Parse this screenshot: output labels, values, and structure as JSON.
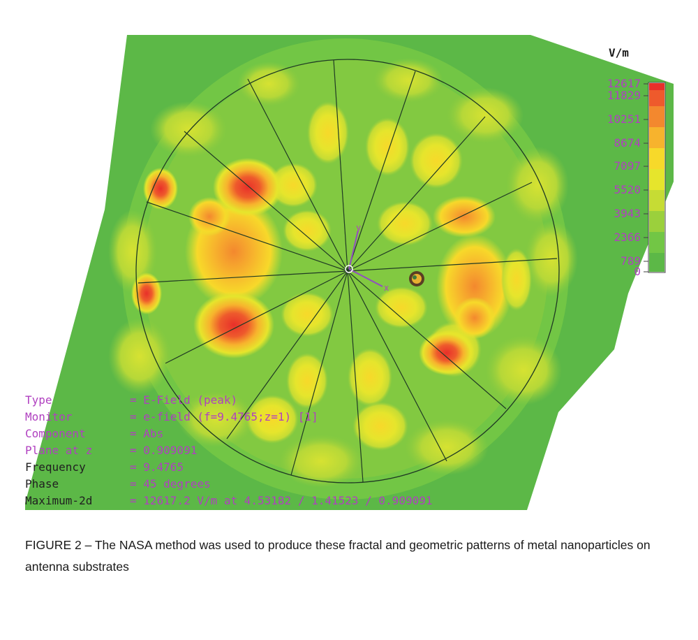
{
  "legend": {
    "unit": "V/m",
    "labels": [
      "12617",
      "11829",
      "10251",
      "8674",
      "7097",
      "5520",
      "3943",
      "2366",
      "789",
      "0"
    ],
    "colors": [
      "#e8302a",
      "#ee5a2c",
      "#f3882e",
      "#f7b32d",
      "#f7d92a",
      "#e6e52c",
      "#c6dc34",
      "#9bd03c",
      "#72c645",
      "#5cb847"
    ]
  },
  "info": [
    {
      "key": "Type",
      "value": "= E-Field (peak)",
      "key_style": "magenta"
    },
    {
      "key": "Monitor",
      "value": "= e-field (f=9.4765;z=1) [1]",
      "key_style": "magenta"
    },
    {
      "key": "Component",
      "value": "= Abs",
      "key_style": "magenta"
    },
    {
      "key": "Plane at z",
      "value": "= 0.909091",
      "key_style": "magenta"
    },
    {
      "key": "Frequency",
      "value": "= 9.4765",
      "key_style": "dark"
    },
    {
      "key": "Phase",
      "value": "= 45 degrees",
      "key_style": "dark"
    },
    {
      "key": "Maximum-2d",
      "value": "= 12617.2 V/m at 4.53182 / 1.41523 / 0.909091",
      "key_style": "dark"
    }
  ],
  "axes": {
    "x_label": "x",
    "y_label": "y"
  },
  "caption": "FIGURE 2 – The NASA method was used to produce these fractal and geometric patterns of metal nanoparticles on antenna substrates",
  "colors": {
    "background": "#5cb847",
    "spoke": "#1f3a24",
    "label": "#b040c0"
  }
}
